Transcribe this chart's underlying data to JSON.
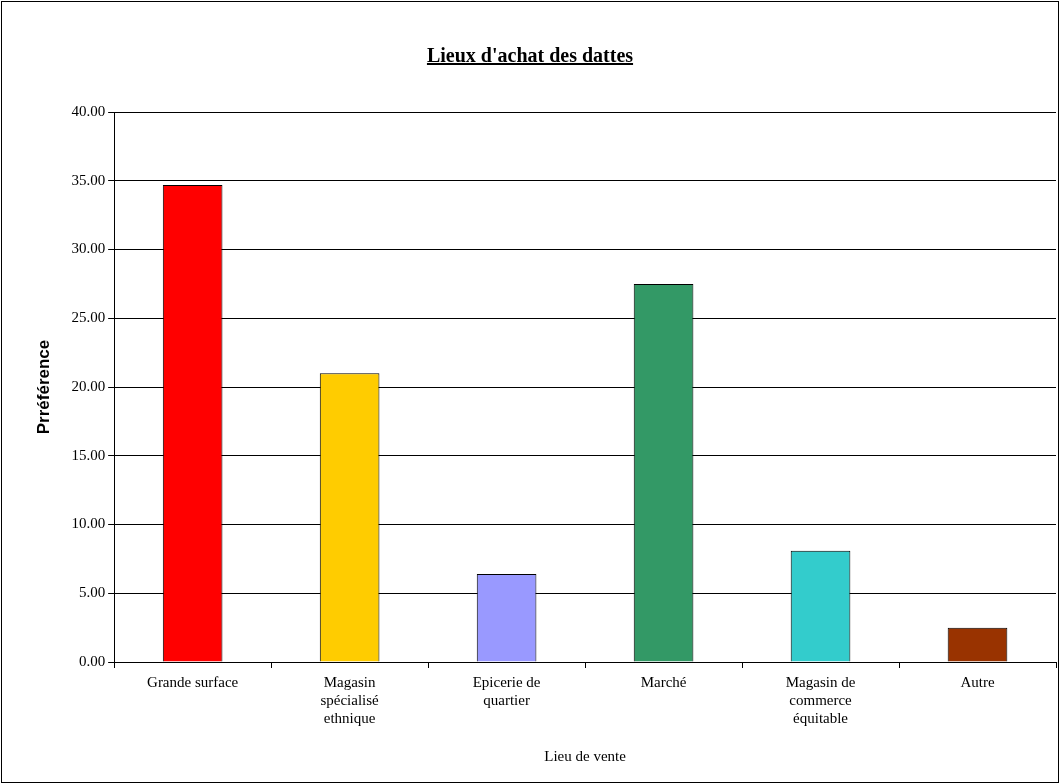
{
  "chart_data": {
    "type": "bar",
    "title": "Lieux d'achat des dattes",
    "xlabel": "Lieu de vente",
    "ylabel": "Prréférence",
    "categories": [
      "Grande surface",
      "Magasin spécialisé ethnique",
      "Epicerie de quartier",
      "Marché",
      "Magasin de commerce équitable",
      "Autre"
    ],
    "values": [
      34.7,
      21.0,
      6.4,
      27.5,
      8.1,
      2.5
    ],
    "colors": [
      "#ff0000",
      "#ffcc00",
      "#9999ff",
      "#339966",
      "#33cccc",
      "#993300"
    ],
    "ylim": [
      0,
      40
    ],
    "yticks": [
      {
        "value": 0,
        "label": "0.00"
      },
      {
        "value": 5,
        "label": "5.00"
      },
      {
        "value": 10,
        "label": "10.00"
      },
      {
        "value": 15,
        "label": "15.00"
      },
      {
        "value": 20,
        "label": "20.00"
      },
      {
        "value": 25,
        "label": "25.00"
      },
      {
        "value": 30,
        "label": "30.00"
      },
      {
        "value": 35,
        "label": "35.00"
      },
      {
        "value": 40,
        "label": "40.00"
      }
    ],
    "grid": "y",
    "legend": false
  }
}
